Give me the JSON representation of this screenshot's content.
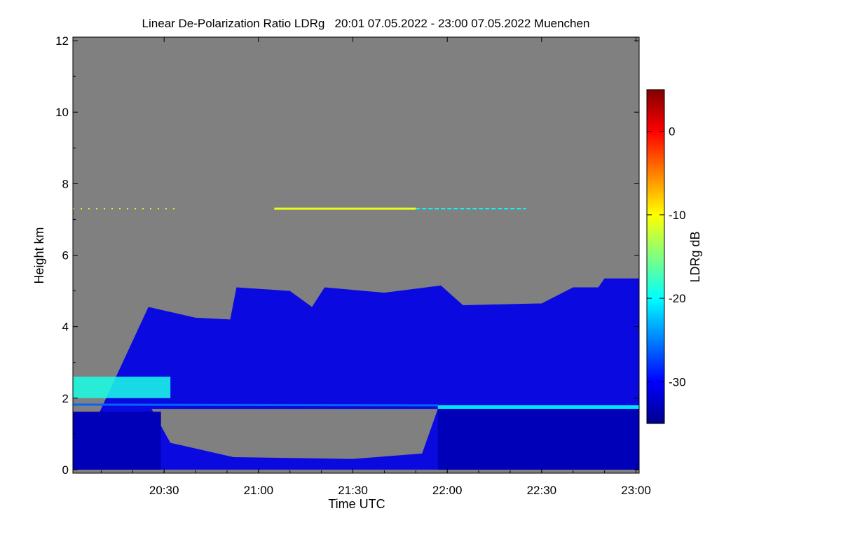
{
  "chart_data": {
    "type": "heatmap",
    "title": "Linear De-Polarization Ratio LDRg   20:01 07.05.2022 - 23:00 07.05.2022 Muenchen",
    "xlabel": "Time UTC",
    "ylabel": "Height km",
    "x_range_minutes_utc": [
      1201,
      1381
    ],
    "x_ticks": [
      {
        "minute": 1230,
        "label": "20:30"
      },
      {
        "minute": 1260,
        "label": "21:00"
      },
      {
        "minute": 1290,
        "label": "21:30"
      },
      {
        "minute": 1320,
        "label": "22:00"
      },
      {
        "minute": 1350,
        "label": "22:30"
      },
      {
        "minute": 1380,
        "label": "23:00"
      }
    ],
    "y_range_km": [
      -0.1,
      12.1
    ],
    "y_ticks": [
      0,
      2,
      4,
      6,
      8,
      10,
      12
    ],
    "colorbar": {
      "label": "LDRg dB",
      "range_db": [
        -35,
        5
      ],
      "ticks": [
        0,
        -10,
        -20,
        -30
      ],
      "colormap": [
        "#00008b",
        "#0000ff",
        "#0080ff",
        "#00ffff",
        "#80ff80",
        "#ffff00",
        "#ff8000",
        "#ff0000",
        "#800000"
      ]
    },
    "no_signal_color": "#808080",
    "features": {
      "cloud_top_km": [
        {
          "t": 1225,
          "h": 4.55
        },
        {
          "t": 1240,
          "h": 4.25
        },
        {
          "t": 1251,
          "h": 4.2
        },
        {
          "t": 1253,
          "h": 5.1
        },
        {
          "t": 1270,
          "h": 5.0
        },
        {
          "t": 1277,
          "h": 4.55
        },
        {
          "t": 1281,
          "h": 5.1
        },
        {
          "t": 1300,
          "h": 4.95
        },
        {
          "t": 1318,
          "h": 5.15
        },
        {
          "t": 1325,
          "h": 4.6
        },
        {
          "t": 1350,
          "h": 4.65
        },
        {
          "t": 1360,
          "h": 5.1
        },
        {
          "t": 1368,
          "h": 5.1
        },
        {
          "t": 1370,
          "h": 5.35
        },
        {
          "t": 1381,
          "h": 5.35
        }
      ],
      "boundary_layer_top_km": 1.75,
      "elevated_layer_km": 7.3,
      "aerosol_layer_km": [
        2.0,
        2.6
      ],
      "low_layer_db": -33,
      "cloud_db": -31,
      "boundary_layer_db": -21,
      "aerosol_layer_db": -19,
      "elevated_layer_db": -11
    }
  }
}
